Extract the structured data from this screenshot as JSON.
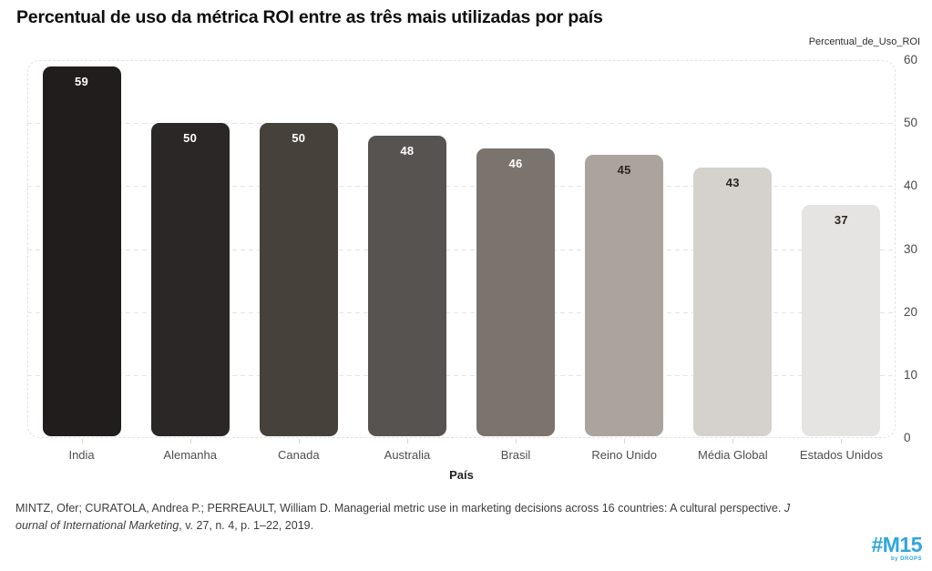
{
  "title": "Percentual de uso da métrica ROI entre as três mais utilizadas por país",
  "chart_data": {
    "type": "bar",
    "title": "Percentual de uso da métrica ROI entre as três mais utilizadas por país",
    "categories": [
      "India",
      "Alemanha",
      "Canada",
      "Australia",
      "Brasil",
      "Reino Unido",
      "Média Global",
      "Estados Unidos"
    ],
    "values": [
      59,
      50,
      50,
      48,
      46,
      45,
      43,
      37
    ],
    "bar_colors": [
      "#211d1c",
      "#2b2726",
      "#46413b",
      "#575350",
      "#7b736d",
      "#aba49e",
      "#d5d1cc",
      "#e6e4e2"
    ],
    "value_label_colors": [
      "#ffffff",
      "#ffffff",
      "#ffffff",
      "#ffffff",
      "#ffffff",
      "#29261f",
      "#29261f",
      "#29261f"
    ],
    "xlabel": "País",
    "ylabel": "Percentual_de_Uso_ROI",
    "ylim": [
      0,
      60
    ],
    "yticks": [
      0,
      10,
      20,
      30,
      40,
      50,
      60
    ],
    "grid": "horizontal-dashed",
    "legend_position": "none",
    "gridline_color": "#e6e3e0"
  },
  "citation": {
    "lines": [
      {
        "segments": [
          {
            "text": "MINTZ, Ofer; CURATOLA, Andrea P.; PERREAULT, William D. Managerial metric use in marketing decisions across 16 countries: A cultural perspective. ",
            "italic": false
          },
          {
            "text": "J",
            "italic": true
          }
        ]
      },
      {
        "segments": [
          {
            "text": "ournal of International Marketing",
            "italic": true
          },
          {
            "text": ", v. 27, n. 4, p. 1–22, 2019.",
            "italic": false
          }
        ]
      }
    ]
  },
  "logo": {
    "text": "#M15",
    "subtext": "by DROPS",
    "color": "#2fa6df"
  }
}
